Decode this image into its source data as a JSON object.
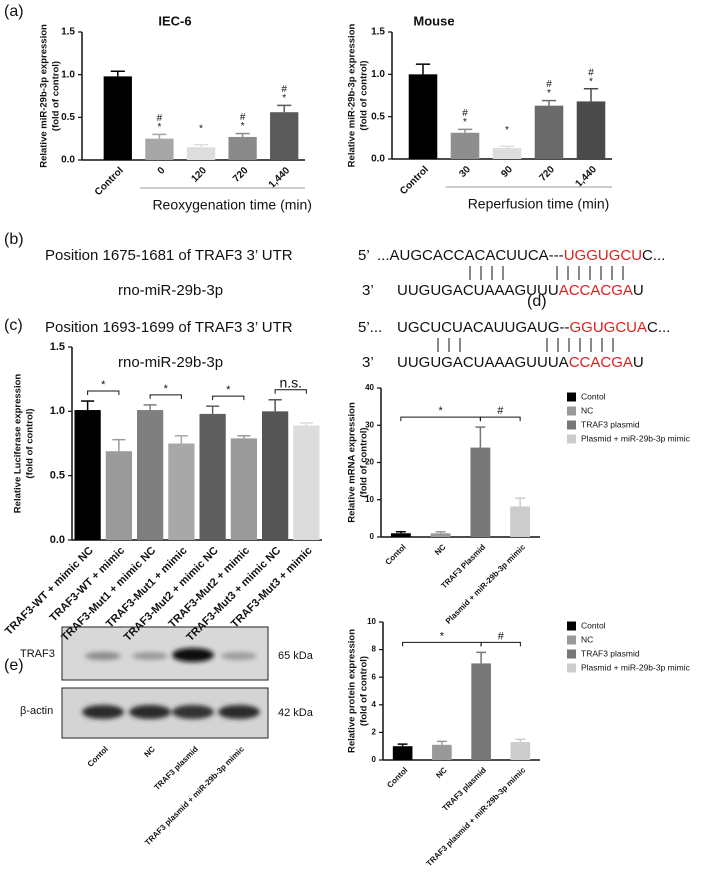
{
  "panel_labels": [
    "(a)",
    "(b)",
    "(c)",
    "(d)",
    "(e)"
  ],
  "chart_data": [
    {
      "type": "bar",
      "title": "IEC-6",
      "ylabel": [
        "Relative miR-29b-3p expression",
        "(fold of control)"
      ],
      "xlabel": "Reoxygenation time (min)",
      "categories": [
        "Control",
        "0",
        "120",
        "720",
        "1,440"
      ],
      "values": [
        0.98,
        0.25,
        0.15,
        0.27,
        0.56
      ],
      "errors": [
        0.06,
        0.05,
        0.03,
        0.04,
        0.08
      ],
      "colors": [
        "#000000",
        "#a6a6a6",
        "#dddddd",
        "#8a8a8a",
        "#5a5a5a"
      ],
      "markers": [
        null,
        [
          "#",
          "*"
        ],
        [
          "*"
        ],
        [
          "#",
          "*"
        ],
        [
          "#",
          "*"
        ]
      ],
      "ylim": [
        0,
        1.5
      ],
      "yticks": [
        {
          "value": 0,
          "label": "0.0"
        },
        {
          "value": 0.5,
          "label": "0.5"
        },
        {
          "value": 1,
          "label": "1.0"
        },
        {
          "value": 1.5,
          "label": "1.5"
        }
      ]
    },
    {
      "type": "bar",
      "title": "Mouse",
      "ylabel": [
        "Relative miR-29b-3p expression",
        "(fold of control)"
      ],
      "xlabel": "Reperfusion time (min)",
      "categories": [
        "Control",
        "30",
        "90",
        "720",
        "1,440"
      ],
      "values": [
        1.0,
        0.31,
        0.13,
        0.63,
        0.68
      ],
      "errors": [
        0.12,
        0.04,
        0.02,
        0.06,
        0.15
      ],
      "colors": [
        "#000000",
        "#8e8e8e",
        "#dddddd",
        "#6a6a6a",
        "#4a4a4a"
      ],
      "markers": [
        null,
        [
          "#",
          "*"
        ],
        [
          "*"
        ],
        [
          "#",
          "*"
        ],
        [
          "#",
          "*"
        ]
      ],
      "ylim": [
        0,
        1.5
      ],
      "yticks": [
        {
          "value": 0,
          "label": "0.0"
        },
        {
          "value": 0.5,
          "label": "0.5"
        },
        {
          "value": 1,
          "label": "1.0"
        },
        {
          "value": 1.5,
          "label": "1.5"
        }
      ]
    },
    {
      "type": "bar",
      "ylabel": [
        "Relative Luciferase expression",
        "(fold of control)"
      ],
      "categories": [
        "TRAF3-WT + mimic NC",
        "TRAF3-WT + mimic",
        "TRAF3-Mut1 + mimic NC",
        "TRAF3-Mut1 + mimic",
        "TRAF3-Mut2 + mimic NC",
        "TRAF3-Mut2 + mimic",
        "TRAF3-Mut3 + mimic NC",
        "TRAF3-Mut3 + mimic"
      ],
      "values": [
        1.01,
        0.69,
        1.01,
        0.75,
        0.98,
        0.79,
        1.0,
        0.89
      ],
      "errors": [
        0.07,
        0.09,
        0.04,
        0.06,
        0.06,
        0.02,
        0.09,
        0.02
      ],
      "colors": [
        "#000000",
        "#9a9a9a",
        "#7f7f7f",
        "#a8a8a8",
        "#5f5f5f",
        "#9a9a9a",
        "#555555",
        "#dcdcdc"
      ],
      "comparisons": [
        {
          "from": "TRAF3-WT + mimic NC",
          "to": "TRAF3-WT + mimic",
          "label": "*"
        },
        {
          "from": "TRAF3-Mut1 + mimic NC",
          "to": "TRAF3-Mut1 + mimic",
          "label": "*"
        },
        {
          "from": "TRAF3-Mut2 + mimic NC",
          "to": "TRAF3-Mut2 + mimic",
          "label": "*"
        },
        {
          "from": "TRAF3-Mut3 + mimic NC",
          "to": "TRAF3-Mut3 + mimic",
          "label": "n.s."
        }
      ],
      "ylim": [
        0,
        1.5
      ],
      "yticks": [
        {
          "value": 0,
          "label": "0.0"
        },
        {
          "value": 0.5,
          "label": "0.5"
        },
        {
          "value": 1,
          "label": "1.0"
        },
        {
          "value": 1.5,
          "label": "1.5"
        }
      ]
    },
    {
      "type": "bar",
      "ylabel": [
        "Relative mRNA expression",
        "(fold of control)"
      ],
      "categories": [
        "Contol",
        "NC",
        "TRAF3 Plasmid",
        "Plasmid + miR-29b-3p mimic"
      ],
      "values": [
        1.0,
        1.0,
        24,
        8.2
      ],
      "errors": [
        0.4,
        0.4,
        5.5,
        2.2
      ],
      "colors": [
        "#000000",
        "#999999",
        "#777777",
        "#cccccc"
      ],
      "legend": [
        "Contol",
        "NC",
        "TRAF3 plasmid",
        "Plasmid + miR-29b-3p mimic"
      ],
      "comparisons": [
        {
          "from": "Contol",
          "to": "TRAF3 Plasmid",
          "label": "*"
        },
        {
          "from": "TRAF3 Plasmid",
          "to": "Plasmid + miR-29b-3p mimic",
          "label": "#"
        }
      ],
      "ylim": [
        0,
        40
      ],
      "yticks": [
        0,
        10,
        20,
        30,
        40
      ]
    },
    {
      "type": "bar",
      "ylabel": [
        "Relative protein expression",
        "(fold of control)"
      ],
      "categories": [
        "Contol",
        "NC",
        "TRAF3 plasmid",
        "TRAF3 plasmid + miR-29b-3p mimic"
      ],
      "values": [
        1.0,
        1.1,
        7.0,
        1.3
      ],
      "errors": [
        0.15,
        0.25,
        0.8,
        0.2
      ],
      "colors": [
        "#000000",
        "#999999",
        "#777777",
        "#cccccc"
      ],
      "legend": [
        "Contol",
        "NC",
        "TRAF3 plasmid",
        "Plasmid + miR-29b-3p mimic"
      ],
      "comparisons": [
        {
          "from": "Contol",
          "to": "TRAF3 plasmid",
          "label": "*"
        },
        {
          "from": "TRAF3 plasmid",
          "to": "TRAF3 plasmid + miR-29b-3p mimic",
          "label": "#"
        }
      ],
      "ylim": [
        0,
        10
      ],
      "yticks": [
        0,
        2,
        4,
        6,
        8,
        10
      ]
    }
  ],
  "sequences": [
    {
      "position": "Position 1675-1681 of TRAF3 3’ UTR",
      "utr_end": "5’",
      "utr_prefix": "...AUGCACCACACUUCA---",
      "utr_site": "UGGUGCU",
      "utr_suffix": "C...",
      "mirna_name": "rno-miR-29b-3p",
      "mirna_end": "3’",
      "mirna_prefix": "UUGUGACUAAAGUUU",
      "mirna_site": "ACCACGA",
      "mirna_suffix": "U"
    },
    {
      "position": "Position 1693-1699 of TRAF3 3’ UTR",
      "utr_end": "5’...",
      "utr_prefix": "UGCUCUACAUUGAUG--",
      "utr_site": "GGUGCUA",
      "utr_suffix": "C...",
      "mirna_name": "rno-miR-29b-3p",
      "mirna_end": "3’",
      "mirna_prefix": "UUGUGACUAAAGUUUA",
      "mirna_site": "CCACGA",
      "mirna_suffix": "U"
    }
  ],
  "blot": {
    "rows": [
      {
        "protein": "TRAF3",
        "size": "65 kDa"
      },
      {
        "protein": "β-actin",
        "size": "42 kDa"
      }
    ],
    "lanes": [
      "Contol",
      "NC",
      "TRAF3 plasmid",
      "TRAF3 plasmid + miR-29b-3p mimic"
    ]
  }
}
